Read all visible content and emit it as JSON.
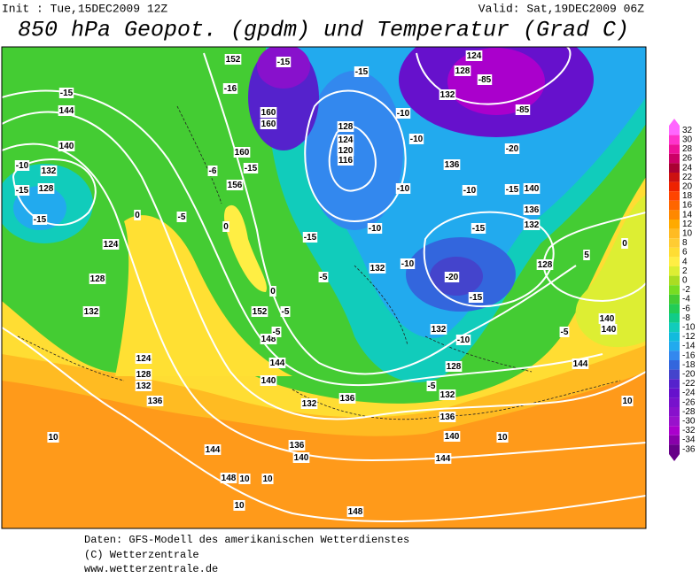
{
  "header": {
    "init": "Init : Tue,15DEC2009 12Z",
    "valid": "Valid: Sat,19DEC2009 06Z",
    "title": "850 hPa Geopot. (gpdm) und Temperatur (Grad C)"
  },
  "map": {
    "labels": [
      -15,
      144,
      140,
      -10,
      132,
      -15,
      128,
      -15,
      124,
      128,
      132,
      124,
      128,
      132,
      136,
      152,
      -16,
      160,
      160,
      160,
      156,
      -15,
      -6,
      -5,
      0,
      0,
      -15,
      -5,
      132,
      -10,
      -10,
      -10,
      128,
      124,
      120,
      116,
      -10,
      -10,
      136,
      -10,
      -15,
      140,
      136,
      132,
      -15,
      -20,
      -15,
      128,
      5,
      0,
      140,
      140,
      -5,
      144,
      10,
      132,
      136,
      140,
      144,
      10,
      -5,
      132,
      136,
      136,
      140,
      144,
      148,
      10,
      10,
      10,
      148,
      10,
      -85,
      -85,
      128,
      124,
      132,
      -20,
      -15,
      -15,
      144,
      140,
      148,
      152,
      -5,
      -5,
      0,
      132,
      -10,
      128
    ]
  },
  "legend": {
    "entries": [
      {
        "value": 32,
        "color": "#ff66ff"
      },
      {
        "value": 30,
        "color": "#ff33cc"
      },
      {
        "value": 28,
        "color": "#ee1199"
      },
      {
        "value": 26,
        "color": "#cc0066"
      },
      {
        "value": 24,
        "color": "#aa0033"
      },
      {
        "value": 22,
        "color": "#cc1111"
      },
      {
        "value": 20,
        "color": "#ee2200"
      },
      {
        "value": 18,
        "color": "#ff4400"
      },
      {
        "value": 16,
        "color": "#ff6600"
      },
      {
        "value": 14,
        "color": "#ff8800"
      },
      {
        "value": 12,
        "color": "#ffaa00"
      },
      {
        "value": 10,
        "color": "#ffbb22"
      },
      {
        "value": 8,
        "color": "#ffcc33"
      },
      {
        "value": 6,
        "color": "#ffdd33"
      },
      {
        "value": 4,
        "color": "#ffee44"
      },
      {
        "value": 2,
        "color": "#ddee33"
      },
      {
        "value": 0,
        "color": "#aadd22"
      },
      {
        "value": -2,
        "color": "#77dd22"
      },
      {
        "value": -4,
        "color": "#44cc33"
      },
      {
        "value": -6,
        "color": "#22cc55"
      },
      {
        "value": -8,
        "color": "#11cc88"
      },
      {
        "value": -10,
        "color": "#11ccbb"
      },
      {
        "value": -12,
        "color": "#11bbdd"
      },
      {
        "value": -14,
        "color": "#22aaee"
      },
      {
        "value": -16,
        "color": "#3388ee"
      },
      {
        "value": -18,
        "color": "#3366dd"
      },
      {
        "value": -20,
        "color": "#4444cc"
      },
      {
        "value": -22,
        "color": "#5522cc"
      },
      {
        "value": -24,
        "color": "#6611cc"
      },
      {
        "value": -26,
        "color": "#7711cc"
      },
      {
        "value": -28,
        "color": "#8811cc"
      },
      {
        "value": -30,
        "color": "#9911cc"
      },
      {
        "value": -32,
        "color": "#aa00cc"
      },
      {
        "value": -34,
        "color": "#8800aa"
      },
      {
        "value": -36,
        "color": "#660088"
      }
    ]
  },
  "footer": {
    "lines": [
      "Daten: GFS-Modell des amerikanischen Wetterdienstes",
      "(C) Wetterzentrale",
      "www.wetterzentrale.de"
    ]
  }
}
